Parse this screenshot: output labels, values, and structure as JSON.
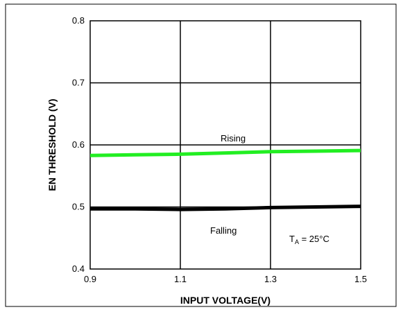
{
  "chart_data": {
    "type": "line",
    "xlabel": "INPUT VOLTAGE(V)",
    "ylabel": "EN THRESHOLD (V)",
    "xlim": [
      0.9,
      1.5
    ],
    "ylim": [
      0.4,
      0.8
    ],
    "grid": true,
    "x_ticks": [
      "0.9",
      "1.1",
      "1.3",
      "1.5"
    ],
    "y_ticks": [
      "0.4",
      "0.5",
      "0.6",
      "0.7",
      "0.8"
    ],
    "series": [
      {
        "name": "Rising",
        "color": "#22ee22",
        "x": [
          0.9,
          1.0,
          1.1,
          1.2,
          1.3,
          1.4,
          1.5
        ],
        "y": [
          0.583,
          0.584,
          0.585,
          0.587,
          0.589,
          0.59,
          0.591
        ]
      },
      {
        "name": "Falling",
        "color": "#000000",
        "x": [
          0.9,
          1.0,
          1.1,
          1.2,
          1.3,
          1.4,
          1.5
        ],
        "y": [
          0.497,
          0.497,
          0.496,
          0.497,
          0.499,
          0.5,
          0.501
        ]
      }
    ],
    "annotation": {
      "T": "T",
      "sub": "A",
      "rest": " = 25°C"
    }
  }
}
